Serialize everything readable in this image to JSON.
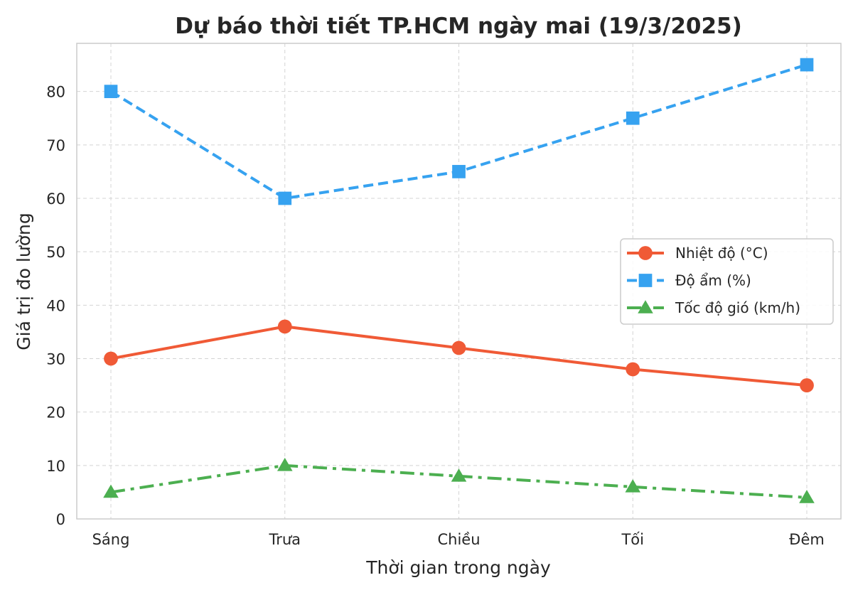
{
  "chart_data": {
    "type": "line",
    "title": "Dự báo thời tiết TP.HCM ngày mai (19/3/2025)",
    "xlabel": "Thời gian trong ngày",
    "ylabel": "Giá trị đo lường",
    "categories": [
      "Sáng",
      "Trưa",
      "Chiều",
      "Tối",
      "Đêm"
    ],
    "ylim": [
      0,
      89
    ],
    "yticks": [
      0,
      10,
      20,
      30,
      40,
      50,
      60,
      70,
      80
    ],
    "grid": true,
    "legend_position": "center-right",
    "series": [
      {
        "name": "Nhiệt độ (°C)",
        "values": [
          30,
          36,
          32,
          28,
          25
        ],
        "color": "#f05a36",
        "marker": "circle",
        "line_style": "solid"
      },
      {
        "name": "Độ ẩm (%)",
        "values": [
          80,
          60,
          65,
          75,
          85
        ],
        "color": "#36a2f0",
        "marker": "square",
        "line_style": "dashed"
      },
      {
        "name": "Tốc độ gió (km/h)",
        "values": [
          5,
          10,
          8,
          6,
          4
        ],
        "color": "#4caf50",
        "marker": "triangle",
        "line_style": "dashdot"
      }
    ]
  }
}
